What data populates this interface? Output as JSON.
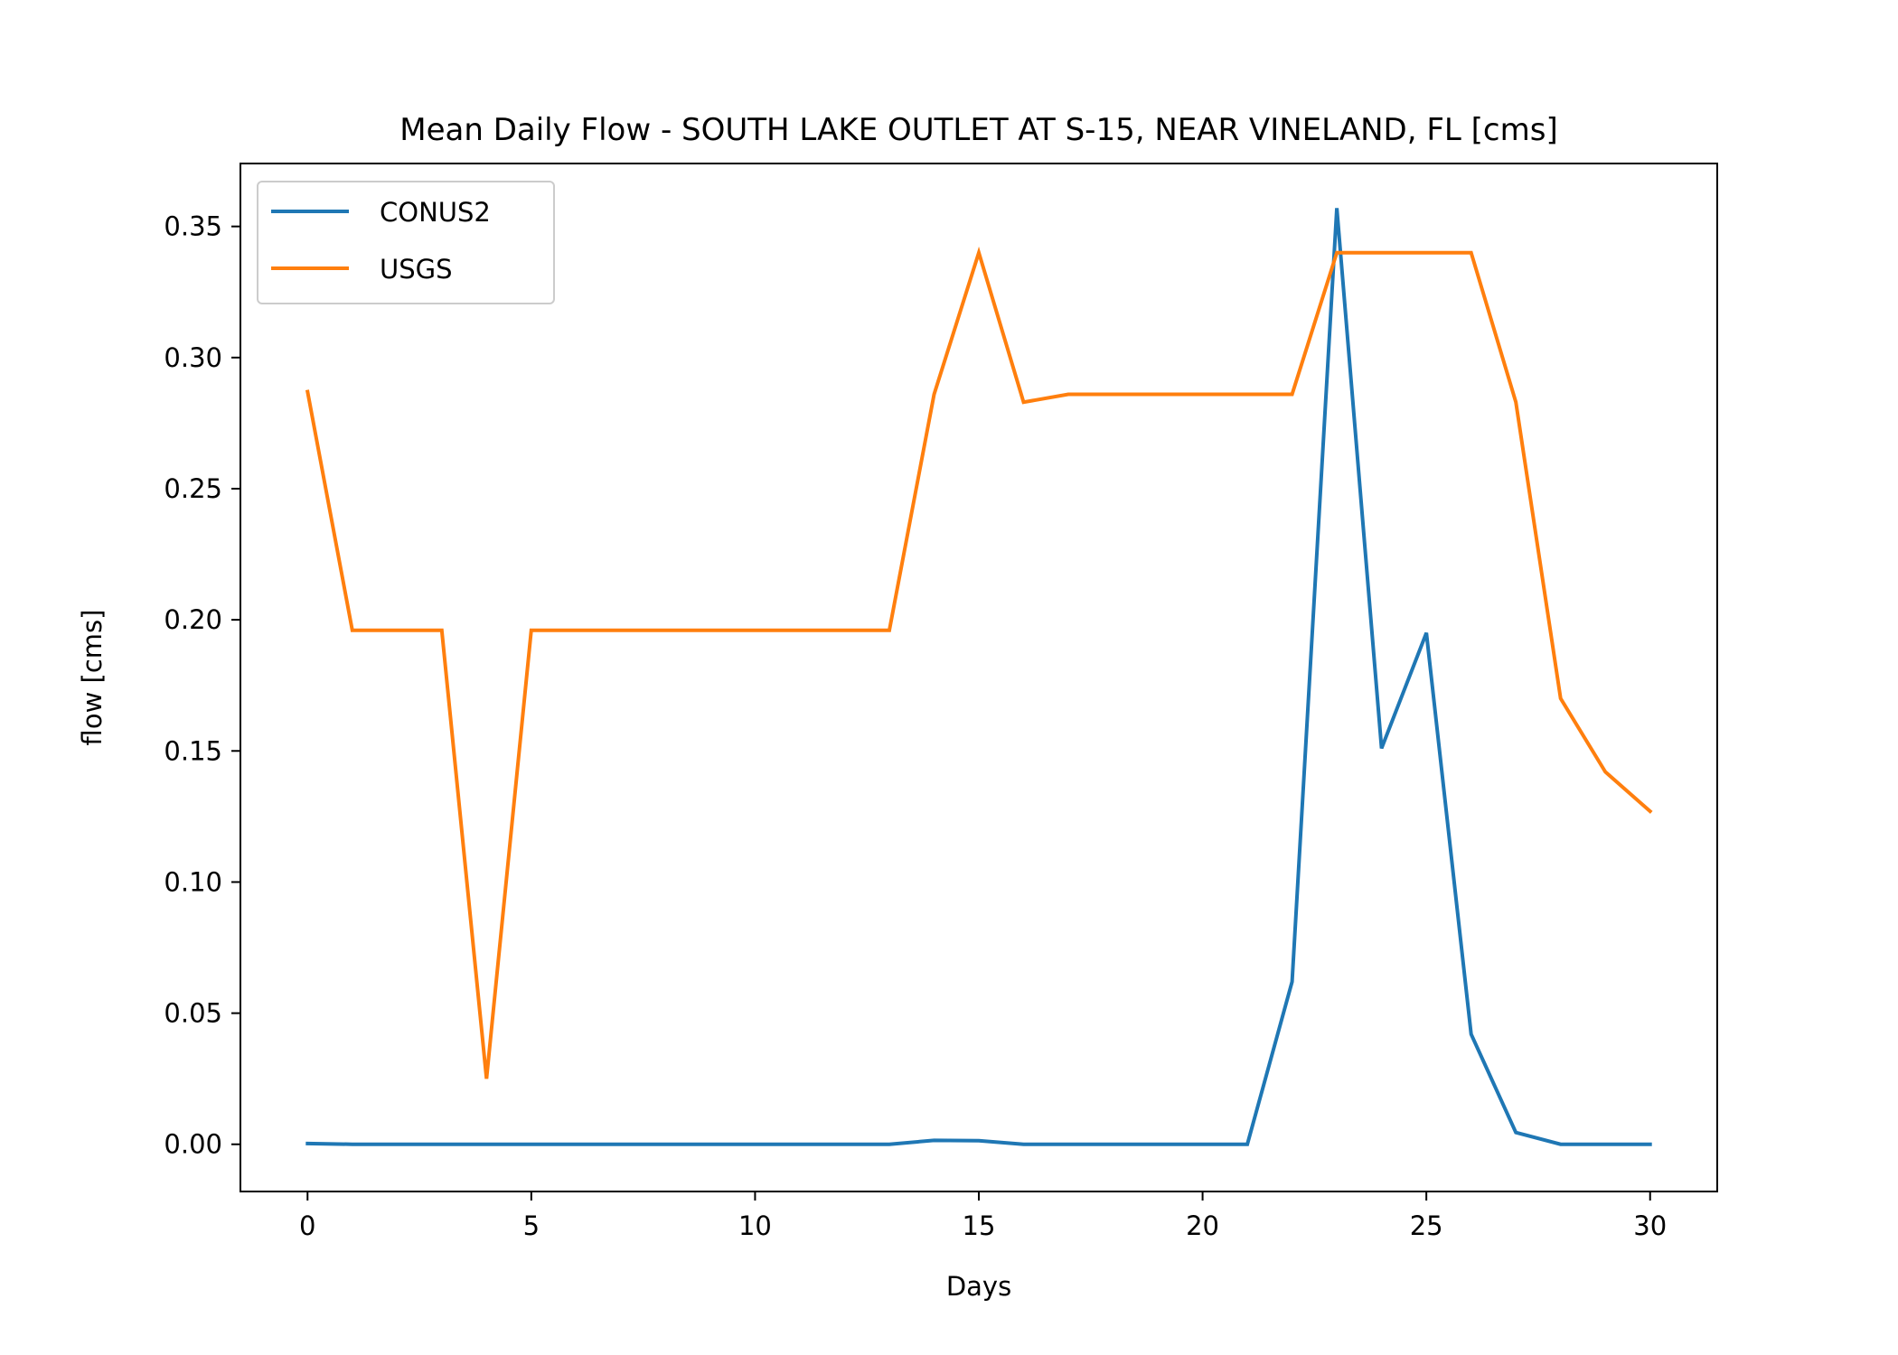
{
  "chart_data": {
    "type": "line",
    "title": "Mean Daily Flow - SOUTH LAKE OUTLET AT S-15, NEAR VINELAND, FL [cms]",
    "xlabel": "Days",
    "ylabel": "flow [cms]",
    "xlim": [
      -1.5,
      31.5
    ],
    "ylim": [
      -0.018,
      0.374
    ],
    "xticks": [
      0,
      5,
      10,
      15,
      20,
      25,
      30
    ],
    "xtick_labels": [
      "0",
      "5",
      "10",
      "15",
      "20",
      "25",
      "30"
    ],
    "yticks": [
      0.0,
      0.05,
      0.1,
      0.15,
      0.2,
      0.25,
      0.3,
      0.35
    ],
    "ytick_labels": [
      "0.00",
      "0.05",
      "0.10",
      "0.15",
      "0.20",
      "0.25",
      "0.30",
      "0.35"
    ],
    "grid": false,
    "legend_position": "upper-left",
    "x": [
      0,
      1,
      2,
      3,
      4,
      5,
      6,
      7,
      8,
      9,
      10,
      11,
      12,
      13,
      14,
      15,
      16,
      17,
      18,
      19,
      20,
      21,
      22,
      23,
      24,
      25,
      26,
      27,
      28,
      29,
      30
    ],
    "series": [
      {
        "name": "CONUS2",
        "color": "#1f77b4",
        "values": [
          0.0003,
          0.0,
          0.0,
          0.0,
          0.0,
          0.0,
          0.0,
          0.0,
          0.0,
          0.0,
          0.0,
          0.0,
          0.0,
          0.0,
          0.0015,
          0.0014,
          0.0,
          0.0,
          0.0,
          0.0,
          0.0,
          0.0,
          0.062,
          0.357,
          0.151,
          0.195,
          0.042,
          0.0045,
          0.0,
          0.0,
          0.0
        ]
      },
      {
        "name": "USGS",
        "color": "#ff7f0e",
        "values": [
          0.287,
          0.196,
          0.196,
          0.196,
          0.025,
          0.196,
          0.196,
          0.196,
          0.196,
          0.196,
          0.196,
          0.196,
          0.196,
          0.196,
          0.286,
          0.34,
          0.283,
          0.286,
          0.286,
          0.286,
          0.286,
          0.286,
          0.286,
          0.34,
          0.34,
          0.34,
          0.34,
          0.283,
          0.17,
          0.142,
          0.127
        ]
      }
    ]
  }
}
